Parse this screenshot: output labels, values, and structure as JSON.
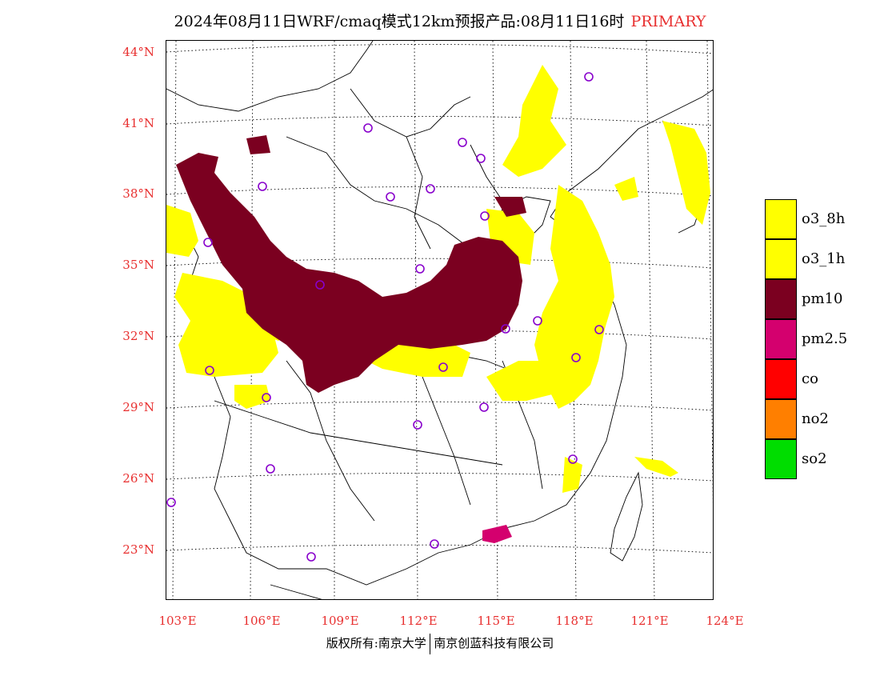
{
  "title": {
    "main": "2024年08月11日WRF/cmaq模式12km预报产品:08月11日16时",
    "tag": "PRIMARY"
  },
  "axes": {
    "lat_labels": [
      "44°N",
      "41°N",
      "38°N",
      "35°N",
      "32°N",
      "29°N",
      "26°N",
      "23°N"
    ],
    "lon_labels": [
      "103°E",
      "106°E",
      "109°E",
      "112°E",
      "115°E",
      "118°E",
      "121°E",
      "124°E"
    ]
  },
  "legend": [
    {
      "label": "o3_8h",
      "color": "#ffff00"
    },
    {
      "label": "o3_1h",
      "color": "#ffff00"
    },
    {
      "label": "pm10",
      "color": "#7b0020"
    },
    {
      "label": "pm2.5",
      "color": "#d4006e"
    },
    {
      "label": "co",
      "color": "#ff0000"
    },
    {
      "label": "no2",
      "color": "#ff7f00"
    },
    {
      "label": "so2",
      "color": "#00dd00"
    }
  ],
  "footer": {
    "left": "版权所有:南京大学",
    "right": "南京创蓝科技有限公司"
  },
  "colors": {
    "o3": "#ffff00",
    "pm10": "#7b0020",
    "pm25": "#d4006e",
    "station": "#8800cc",
    "axis_label": "#e83030"
  }
}
